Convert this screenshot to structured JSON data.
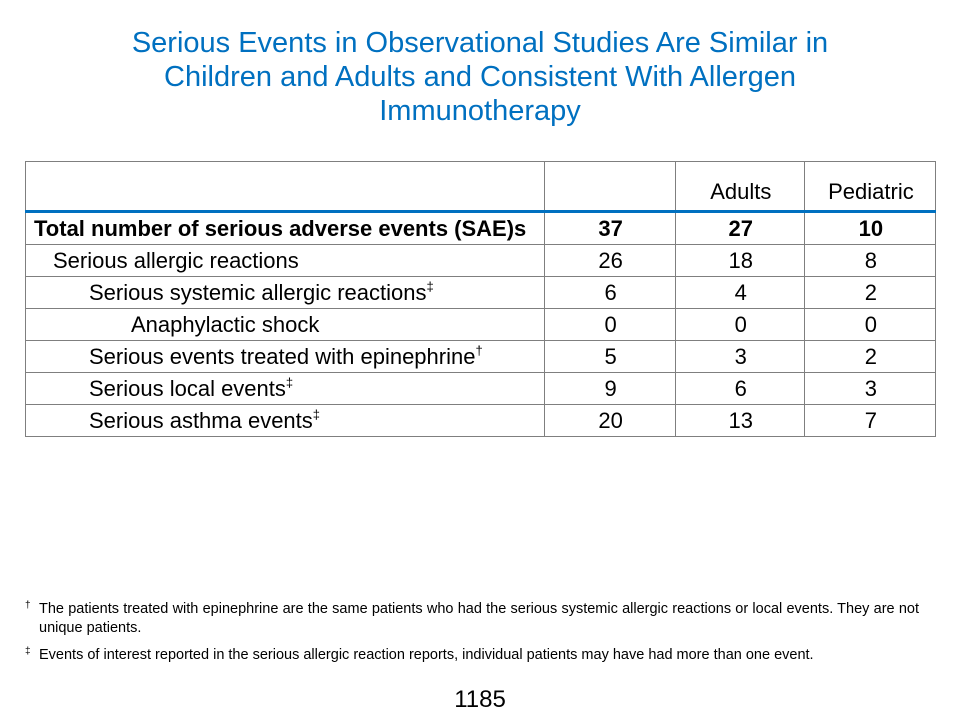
{
  "title": {
    "line1": "Serious Events in Observational Studies Are Similar in",
    "line2": "Children and Adults and Consistent With Allergen",
    "line3": "Immunotherapy"
  },
  "table": {
    "header": [
      "",
      "",
      "Adults",
      "Pediatric"
    ],
    "rows": [
      {
        "label": "Total number of serious adverse events (SAE)s",
        "mark": "",
        "values": [
          "37",
          "27",
          "10"
        ]
      },
      {
        "label": "Serious allergic reactions",
        "mark": "",
        "values": [
          "26",
          "18",
          "8"
        ]
      },
      {
        "label": "Serious systemic allergic reactions",
        "mark": "‡",
        "values": [
          "6",
          "4",
          "2"
        ]
      },
      {
        "label": "Anaphylactic shock",
        "mark": "",
        "values": [
          "0",
          "0",
          "0"
        ]
      },
      {
        "label": "Serious events treated with epinephrine",
        "mark": "†",
        "values": [
          "5",
          "3",
          "2"
        ]
      },
      {
        "label": "Serious local events",
        "mark": "‡",
        "values": [
          "9",
          "6",
          "3"
        ]
      },
      {
        "label": "Serious asthma events",
        "mark": "‡",
        "values": [
          "20",
          "13",
          "7"
        ]
      }
    ]
  },
  "footnotes": [
    {
      "mark": "†",
      "text": "The patients treated with epinephrine are the same patients who had the serious systemic allergic reactions or local events.  They are not unique patients."
    },
    {
      "mark": "‡",
      "text": "Events of interest reported in the serious allergic reaction reports, individual patients may have had more than one event."
    }
  ],
  "page_number": "1185"
}
